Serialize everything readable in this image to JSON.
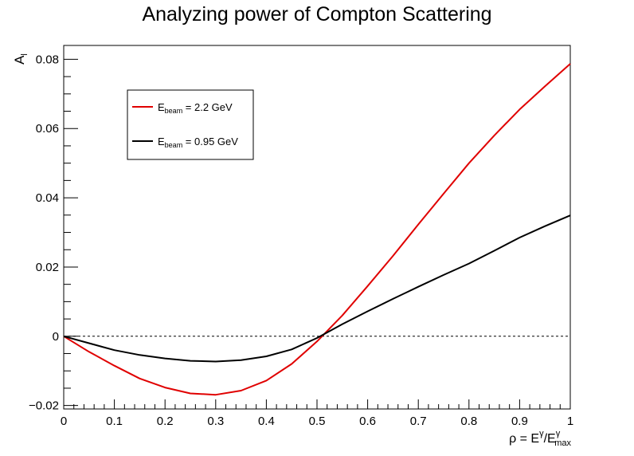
{
  "chart_data": {
    "type": "line",
    "title": "Analyzing power of Compton Scattering",
    "ylabel": "A",
    "ylabel_sub": "l",
    "xlabel_parts": {
      "rho": "ρ = E",
      "sup1": "γ",
      "slash": "/E",
      "sup2": "γ",
      "sub2": "max"
    },
    "xlim": [
      0,
      1
    ],
    "ylim": [
      -0.021,
      0.084
    ],
    "x_ticks": [
      "0",
      "0.1",
      "0.2",
      "0.3",
      "0.4",
      "0.5",
      "0.6",
      "0.7",
      "0.8",
      "0.9",
      "1"
    ],
    "x_tick_values": [
      0,
      0.1,
      0.2,
      0.3,
      0.4,
      0.5,
      0.6,
      0.7,
      0.8,
      0.9,
      1
    ],
    "y_ticks": [
      "−0.02",
      "0",
      "0.02",
      "0.04",
      "0.06",
      "0.08"
    ],
    "y_tick_values": [
      -0.02,
      0,
      0.02,
      0.04,
      0.06,
      0.08
    ],
    "zero_line": true,
    "grid": false,
    "legend_position": "top-left",
    "series": [
      {
        "name": "E",
        "name_sub": "beam",
        "name_rest": " = 2.2 GeV",
        "color": "#e00000",
        "x": [
          0,
          0.05,
          0.1,
          0.15,
          0.2,
          0.25,
          0.3,
          0.35,
          0.4,
          0.45,
          0.5,
          0.55,
          0.6,
          0.65,
          0.7,
          0.75,
          0.8,
          0.85,
          0.9,
          0.95,
          1.0
        ],
        "y": [
          0,
          -0.0045,
          -0.0085,
          -0.0122,
          -0.0148,
          -0.0165,
          -0.0169,
          -0.0157,
          -0.0128,
          -0.008,
          -0.0015,
          0.006,
          0.0145,
          0.0232,
          0.0323,
          0.0412,
          0.05,
          0.058,
          0.0655,
          0.0722,
          0.0787
        ]
      },
      {
        "name": "E",
        "name_sub": "beam",
        "name_rest": " = 0.95 GeV",
        "color": "#000000",
        "x": [
          0,
          0.05,
          0.1,
          0.15,
          0.2,
          0.25,
          0.3,
          0.35,
          0.4,
          0.45,
          0.5,
          0.55,
          0.6,
          0.65,
          0.7,
          0.75,
          0.8,
          0.85,
          0.9,
          0.95,
          1.0
        ],
        "y": [
          0,
          -0.002,
          -0.004,
          -0.0054,
          -0.0064,
          -0.0071,
          -0.0073,
          -0.0069,
          -0.0058,
          -0.0038,
          -0.0005,
          0.0035,
          0.0072,
          0.0108,
          0.0143,
          0.0177,
          0.021,
          0.0247,
          0.0285,
          0.0318,
          0.0349
        ]
      }
    ]
  }
}
